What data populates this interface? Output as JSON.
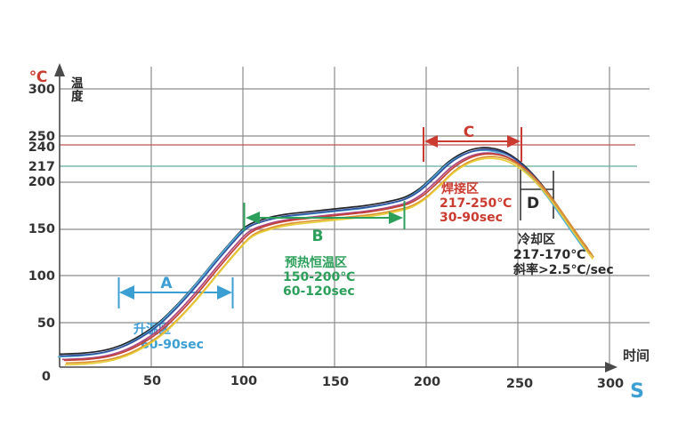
{
  "axes": {
    "y_unit": "℃",
    "y_title": "温度",
    "x_title": "时间",
    "x_unit": "S",
    "y_ticks": [
      {
        "label": "300",
        "color": "#333333"
      },
      {
        "label": "250",
        "color": "#333333"
      },
      {
        "label": "240",
        "color": "#c0504d"
      },
      {
        "label": "217",
        "color": "#3fa08c"
      },
      {
        "label": "200",
        "color": "#333333"
      },
      {
        "label": "150",
        "color": "#333333"
      },
      {
        "label": "100",
        "color": "#333333"
      },
      {
        "label": "50",
        "color": "#333333"
      },
      {
        "label": "0",
        "color": "#333333"
      }
    ],
    "x_ticks": [
      "50",
      "100",
      "150",
      "200",
      "250",
      "300"
    ]
  },
  "chart_data": {
    "type": "line",
    "title": "",
    "xlabel": "时间 (S)",
    "ylabel": "温度 (℃)",
    "xlim": [
      0,
      300
    ],
    "ylim": [
      0,
      300
    ],
    "grid": true,
    "legend": "none",
    "reference_lines": [
      {
        "temp": 240,
        "color": "#c0504d"
      },
      {
        "temp": 217,
        "color": "#5fae9f"
      }
    ],
    "profile": {
      "t": [
        0,
        12,
        24,
        34,
        44,
        54,
        64,
        74,
        84,
        94,
        102,
        112,
        124,
        138,
        152,
        166,
        178,
        188,
        196,
        204,
        212,
        220,
        228,
        236,
        244,
        252,
        260,
        268,
        274,
        280,
        285,
        288
      ],
      "temp": [
        14,
        15,
        18,
        24,
        34,
        48,
        67,
        89,
        113,
        136,
        152,
        160,
        165,
        168,
        171,
        174,
        178,
        183,
        192,
        206,
        221,
        231,
        236,
        236,
        231,
        220,
        204,
        184,
        167,
        150,
        136,
        128
      ]
    },
    "curves": [
      {
        "color": "#23242a",
        "dx": 0,
        "dy": 0
      },
      {
        "color": "#52b0d8",
        "dx": -2,
        "dy": 3
      },
      {
        "color": "#30519e",
        "dx": 1,
        "dy": 2
      },
      {
        "color": "#ad4680",
        "dx": 3,
        "dy": 6
      },
      {
        "color": "#c44233",
        "dx": 5,
        "dy": 7
      },
      {
        "color": "#dc9430",
        "dx": 7,
        "dy": 10
      },
      {
        "color": "#e7cd36",
        "dx": 6,
        "dy": 12
      }
    ],
    "zones": [
      {
        "letter": "A",
        "name": "升温区",
        "time_range": "60-90sec",
        "color": "#3b9fd4",
        "t_start": 32,
        "t_end": 95
      },
      {
        "letter": "B",
        "name": "预热恒温区",
        "temp_range": "150-200℃",
        "time_range": "60-120sec",
        "color": "#2ca05a",
        "t_start": 100,
        "t_end": 188
      },
      {
        "letter": "C",
        "name": "焊接区",
        "temp_range": "217-250℃",
        "time_range": "30-90sec",
        "color": "#cc3b2f",
        "t_start": 199,
        "t_end": 251
      },
      {
        "letter": "D",
        "name": "冷却区",
        "temp_range": "217-170℃",
        "rate": "斜率>2.5℃/sec",
        "color": "#2a2a2a",
        "t_start": 251,
        "t_end": 269
      }
    ]
  }
}
